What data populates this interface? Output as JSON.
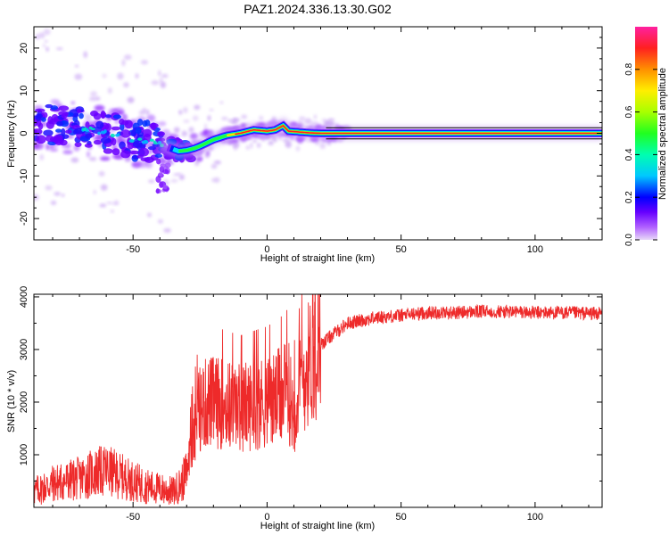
{
  "title": "PAZ1.2024.336.13.30.G02",
  "colors": {
    "snr_line": "#ee2a2a",
    "ridge": "#ff2020",
    "axis": "#000000"
  },
  "chart_data": [
    {
      "type": "heatmap",
      "xlabel": "Height of straight line (km)",
      "ylabel": "Frequency (Hz)",
      "xlim": [
        -87,
        125
      ],
      "ylim": [
        -25,
        25
      ],
      "x_ticks": [
        -50,
        0,
        50,
        100
      ],
      "y_ticks": [
        -20,
        -10,
        0,
        10,
        20
      ],
      "ridge": {
        "x": [
          -87,
          -80,
          -70,
          -60,
          -50,
          -45,
          -40,
          -36,
          -33,
          -30,
          -27,
          -25,
          -20,
          -15,
          -10,
          -5,
          0,
          3,
          6,
          8,
          12,
          16,
          20,
          25,
          30,
          40,
          50,
          60,
          80,
          100,
          125
        ],
        "y": [
          2.5,
          2,
          1.2,
          0,
          -1.5,
          -1.8,
          -2.5,
          -3.5,
          -4.2,
          -4,
          -3.5,
          -3,
          -1.5,
          -0.5,
          0,
          0.8,
          0.5,
          0.8,
          1.8,
          0.5,
          0.3,
          0.1,
          0,
          0,
          0,
          0,
          0,
          0,
          0,
          0,
          0
        ]
      },
      "colorbar": {
        "label": "Normalized spectral amplitude",
        "range": [
          0,
          1
        ],
        "ticks": [
          "0.0",
          "0.2",
          "0.4",
          "0.6",
          "0.8"
        ],
        "tick_values": [
          0,
          0.2,
          0.4,
          0.6,
          0.8
        ]
      },
      "grid": false
    },
    {
      "type": "line",
      "xlabel": "Height of straight line (km)",
      "ylabel": "SNR (10 * v/v)",
      "xlim": [
        -87,
        125
      ],
      "ylim": [
        0,
        4050
      ],
      "x_ticks": [
        -50,
        0,
        50,
        100
      ],
      "y_ticks": [
        1000,
        2000,
        3000,
        4000
      ],
      "series": [
        {
          "trend_x": [
            -87,
            -80,
            -75,
            -70,
            -65,
            -60,
            -55,
            -50,
            -45,
            -40,
            -35,
            -32,
            -30,
            -28,
            -25,
            -22,
            -20,
            -15,
            -10,
            -5,
            0,
            5,
            8,
            10,
            12,
            15,
            20,
            25,
            30,
            35,
            40,
            50,
            60,
            70,
            80,
            90,
            100,
            110,
            125
          ],
          "trend_y": [
            300,
            450,
            500,
            550,
            650,
            700,
            600,
            500,
            400,
            350,
            300,
            450,
            650,
            1300,
            1900,
            2000,
            2000,
            1950,
            1900,
            1950,
            2000,
            2100,
            2200,
            1800,
            2200,
            2700,
            3100,
            3300,
            3500,
            3550,
            3600,
            3650,
            3700,
            3700,
            3720,
            3720,
            3700,
            3700,
            3680
          ]
        }
      ],
      "grid": false
    }
  ]
}
